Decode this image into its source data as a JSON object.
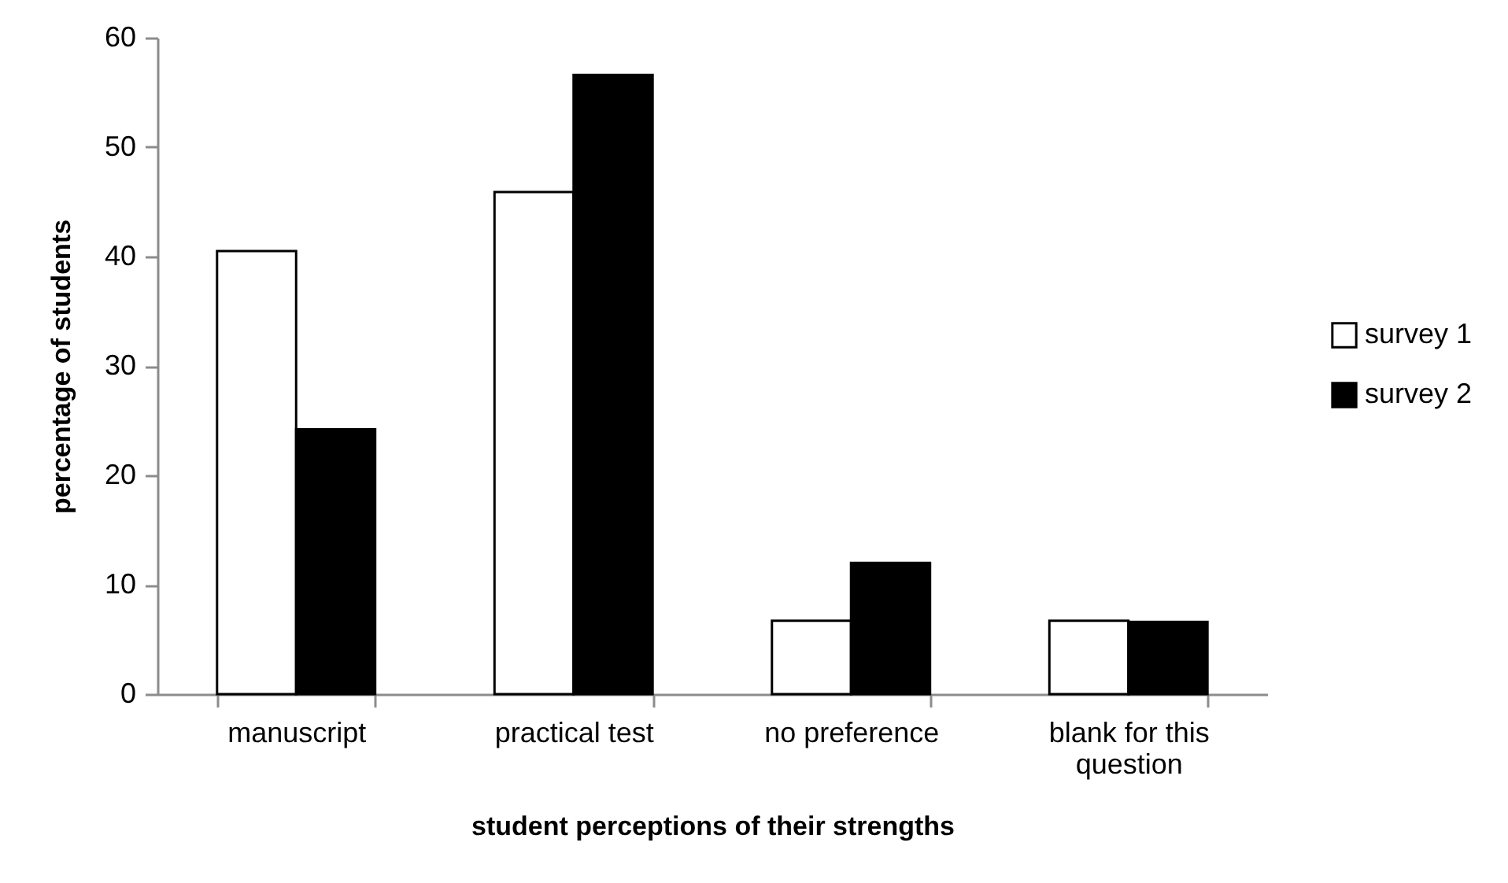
{
  "chart_data": {
    "type": "bar",
    "xlabel": "student perceptions of their strengths",
    "ylabel": "percentage of students",
    "categories": [
      "manuscript",
      "practical test",
      "no preference",
      "blank for this question"
    ],
    "series": [
      {
        "name": "survey 1",
        "color": "#ffffff",
        "values": [
          40.5,
          45.9,
          6.7,
          6.7
        ]
      },
      {
        "name": "survey 2",
        "color": "#000000",
        "values": [
          24.2,
          56.6,
          12.0,
          6.6
        ]
      }
    ],
    "ylim": [
      0,
      60
    ],
    "yticks": [
      0,
      10,
      20,
      30,
      40,
      50,
      60
    ],
    "legend": "right"
  }
}
